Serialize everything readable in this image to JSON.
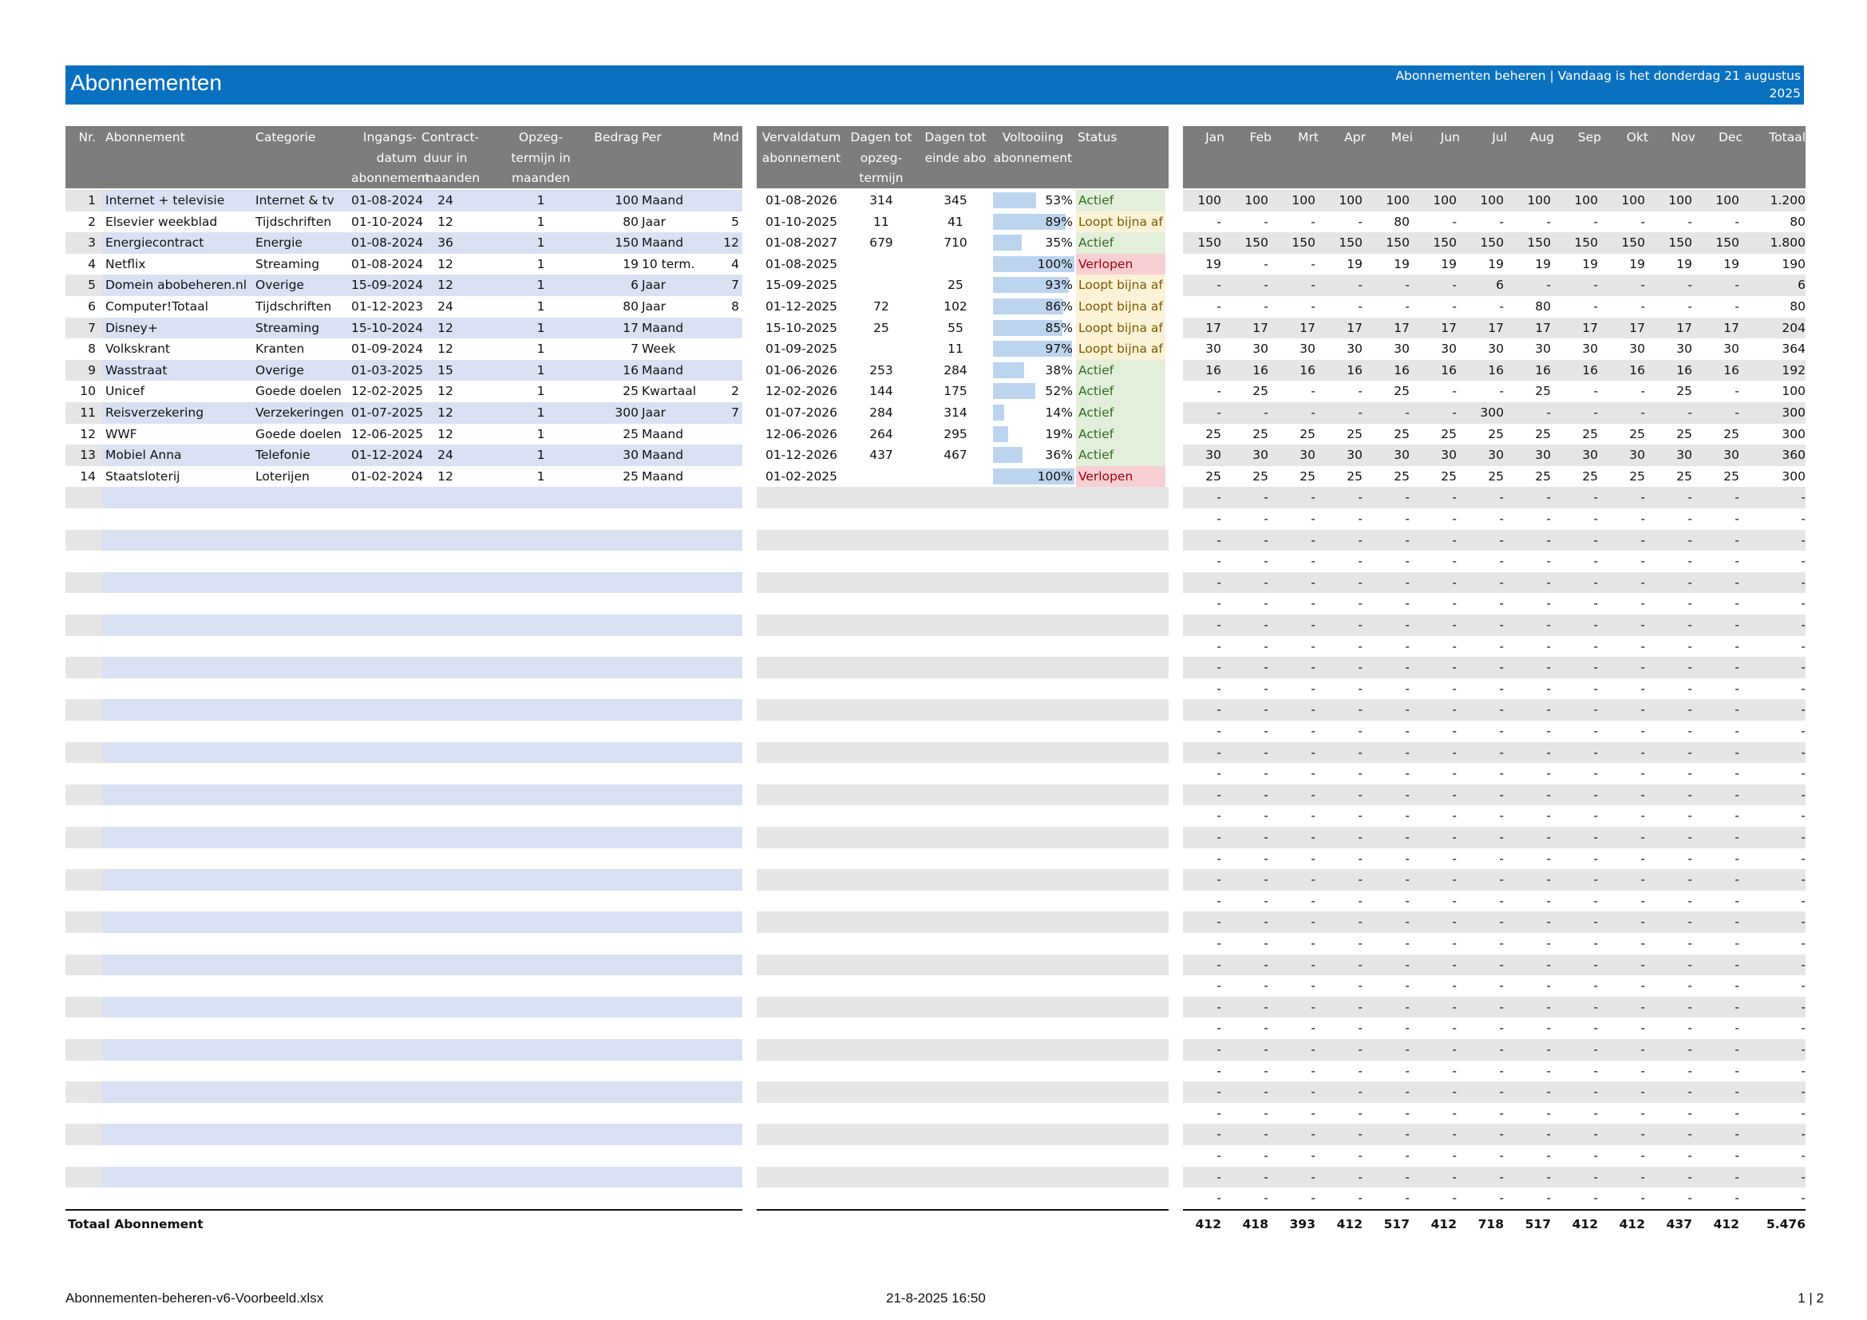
{
  "header": {
    "title": "Abonnementen",
    "info_line1": "Abonnementen beheren | Vandaag is het donderdag 21 augustus",
    "info_line2": "2025"
  },
  "left_columns": [
    "Nr.",
    "Abonnement",
    "Categorie",
    "Ingangs-\ndatum\nabonnement",
    "Contract-\nduur in\nmaanden",
    "Opzeg-\ntermijn in\nmaanden",
    "Bedrag",
    "Per",
    "Mnd"
  ],
  "middle_columns": [
    "Vervaldatum\nabonnement",
    "Dagen tot\nopzeg-\ntermijn",
    "Dagen tot\neinde abo",
    "Voltooiing\nabonnement",
    "Status"
  ],
  "month_columns": [
    "Jan",
    "Feb",
    "Mrt",
    "Apr",
    "Mei",
    "Jun",
    "Jul",
    "Aug",
    "Sep",
    "Okt",
    "Nov",
    "Dec",
    "Totaal"
  ],
  "subscriptions": [
    {
      "nr": "1",
      "name": "Internet + televisie",
      "cat": "Internet & tv",
      "start": "01-08-2024",
      "dur": "24",
      "opz": "1",
      "amt": "100",
      "per": "Maand",
      "mnd": "",
      "exp": "01-08-2026",
      "dopz": "314",
      "dend": "345",
      "pct": "53%",
      "status": "Actief",
      "months": [
        "100",
        "100",
        "100",
        "100",
        "100",
        "100",
        "100",
        "100",
        "100",
        "100",
        "100",
        "100"
      ],
      "total": "1.200"
    },
    {
      "nr": "2",
      "name": "Elsevier weekblad",
      "cat": "Tijdschriften",
      "start": "01-10-2024",
      "dur": "12",
      "opz": "1",
      "amt": "80",
      "per": "Jaar",
      "mnd": "5",
      "exp": "01-10-2025",
      "dopz": "11",
      "dend": "41",
      "pct": "89%",
      "status": "Loopt bijna af",
      "months": [
        "-",
        "-",
        "-",
        "-",
        "80",
        "-",
        "-",
        "-",
        "-",
        "-",
        "-",
        "-"
      ],
      "total": "80"
    },
    {
      "nr": "3",
      "name": "Energiecontract",
      "cat": "Energie",
      "start": "01-08-2024",
      "dur": "36",
      "opz": "1",
      "amt": "150",
      "per": "Maand",
      "mnd": "12",
      "exp": "01-08-2027",
      "dopz": "679",
      "dend": "710",
      "pct": "35%",
      "status": "Actief",
      "months": [
        "150",
        "150",
        "150",
        "150",
        "150",
        "150",
        "150",
        "150",
        "150",
        "150",
        "150",
        "150"
      ],
      "total": "1.800"
    },
    {
      "nr": "4",
      "name": "Netflix",
      "cat": "Streaming",
      "start": "01-08-2024",
      "dur": "12",
      "opz": "1",
      "amt": "19",
      "per": "10 term.",
      "mnd": "4",
      "exp": "01-08-2025",
      "dopz": "",
      "dend": "",
      "pct": "100%",
      "status": "Verlopen",
      "months": [
        "19",
        "-",
        "-",
        "19",
        "19",
        "19",
        "19",
        "19",
        "19",
        "19",
        "19",
        "19"
      ],
      "total": "190"
    },
    {
      "nr": "5",
      "name": "Domein abobeheren.nl",
      "cat": "Overige",
      "start": "15-09-2024",
      "dur": "12",
      "opz": "1",
      "amt": "6",
      "per": "Jaar",
      "mnd": "7",
      "exp": "15-09-2025",
      "dopz": "",
      "dend": "25",
      "pct": "93%",
      "status": "Loopt bijna af",
      "months": [
        "-",
        "-",
        "-",
        "-",
        "-",
        "-",
        "6",
        "-",
        "-",
        "-",
        "-",
        "-"
      ],
      "total": "6"
    },
    {
      "nr": "6",
      "name": "Computer!Totaal",
      "cat": "Tijdschriften",
      "start": "01-12-2023",
      "dur": "24",
      "opz": "1",
      "amt": "80",
      "per": "Jaar",
      "mnd": "8",
      "exp": "01-12-2025",
      "dopz": "72",
      "dend": "102",
      "pct": "86%",
      "status": "Loopt bijna af",
      "months": [
        "-",
        "-",
        "-",
        "-",
        "-",
        "-",
        "-",
        "80",
        "-",
        "-",
        "-",
        "-"
      ],
      "total": "80"
    },
    {
      "nr": "7",
      "name": "Disney+",
      "cat": "Streaming",
      "start": "15-10-2024",
      "dur": "12",
      "opz": "1",
      "amt": "17",
      "per": "Maand",
      "mnd": "",
      "exp": "15-10-2025",
      "dopz": "25",
      "dend": "55",
      "pct": "85%",
      "status": "Loopt bijna af",
      "months": [
        "17",
        "17",
        "17",
        "17",
        "17",
        "17",
        "17",
        "17",
        "17",
        "17",
        "17",
        "17"
      ],
      "total": "204"
    },
    {
      "nr": "8",
      "name": "Volkskrant",
      "cat": "Kranten",
      "start": "01-09-2024",
      "dur": "12",
      "opz": "1",
      "amt": "7",
      "per": "Week",
      "mnd": "",
      "exp": "01-09-2025",
      "dopz": "",
      "dend": "11",
      "pct": "97%",
      "status": "Loopt bijna af",
      "months": [
        "30",
        "30",
        "30",
        "30",
        "30",
        "30",
        "30",
        "30",
        "30",
        "30",
        "30",
        "30"
      ],
      "total": "364"
    },
    {
      "nr": "9",
      "name": "Wasstraat",
      "cat": "Overige",
      "start": "01-03-2025",
      "dur": "15",
      "opz": "1",
      "amt": "16",
      "per": "Maand",
      "mnd": "",
      "exp": "01-06-2026",
      "dopz": "253",
      "dend": "284",
      "pct": "38%",
      "status": "Actief",
      "months": [
        "16",
        "16",
        "16",
        "16",
        "16",
        "16",
        "16",
        "16",
        "16",
        "16",
        "16",
        "16"
      ],
      "total": "192"
    },
    {
      "nr": "10",
      "name": "Unicef",
      "cat": "Goede doelen",
      "start": "12-02-2025",
      "dur": "12",
      "opz": "1",
      "amt": "25",
      "per": "Kwartaal",
      "mnd": "2",
      "exp": "12-02-2026",
      "dopz": "144",
      "dend": "175",
      "pct": "52%",
      "status": "Actief",
      "months": [
        "-",
        "25",
        "-",
        "-",
        "25",
        "-",
        "-",
        "25",
        "-",
        "-",
        "25",
        "-"
      ],
      "total": "100"
    },
    {
      "nr": "11",
      "name": "Reisverzekering",
      "cat": "Verzekeringen",
      "start": "01-07-2025",
      "dur": "12",
      "opz": "1",
      "amt": "300",
      "per": "Jaar",
      "mnd": "7",
      "exp": "01-07-2026",
      "dopz": "284",
      "dend": "314",
      "pct": "14%",
      "status": "Actief",
      "months": [
        "-",
        "-",
        "-",
        "-",
        "-",
        "-",
        "300",
        "-",
        "-",
        "-",
        "-",
        "-"
      ],
      "total": "300"
    },
    {
      "nr": "12",
      "name": "WWF",
      "cat": "Goede doelen",
      "start": "12-06-2025",
      "dur": "12",
      "opz": "1",
      "amt": "25",
      "per": "Maand",
      "mnd": "",
      "exp": "12-06-2026",
      "dopz": "264",
      "dend": "295",
      "pct": "19%",
      "status": "Actief",
      "months": [
        "25",
        "25",
        "25",
        "25",
        "25",
        "25",
        "25",
        "25",
        "25",
        "25",
        "25",
        "25"
      ],
      "total": "300"
    },
    {
      "nr": "13",
      "name": "Mobiel Anna",
      "cat": "Telefonie",
      "start": "01-12-2024",
      "dur": "24",
      "opz": "1",
      "amt": "30",
      "per": "Maand",
      "mnd": "",
      "exp": "01-12-2026",
      "dopz": "437",
      "dend": "467",
      "pct": "36%",
      "status": "Actief",
      "months": [
        "30",
        "30",
        "30",
        "30",
        "30",
        "30",
        "30",
        "30",
        "30",
        "30",
        "30",
        "30"
      ],
      "total": "360"
    },
    {
      "nr": "14",
      "name": "Staatsloterij",
      "cat": "Loterijen",
      "start": "01-02-2024",
      "dur": "12",
      "opz": "1",
      "amt": "25",
      "per": "Maand",
      "mnd": "",
      "exp": "01-02-2025",
      "dopz": "",
      "dend": "",
      "pct": "100%",
      "status": "Verlopen",
      "months": [
        "25",
        "25",
        "25",
        "25",
        "25",
        "25",
        "25",
        "25",
        "25",
        "25",
        "25",
        "25"
      ],
      "total": "300"
    }
  ],
  "empty_placeholder": "-",
  "totals": {
    "label": "Totaal Abonnement",
    "values": [
      "412",
      "418",
      "393",
      "412",
      "517",
      "412",
      "718",
      "517",
      "412",
      "412",
      "437",
      "412",
      "5.476"
    ]
  },
  "footer": {
    "filename": "Abonnementen-beheren-v6-Voorbeeld.xlsx",
    "datetime": "21-8-2025 16:50",
    "page": "1 | 2"
  },
  "colors": {
    "banner": "#0a70c0",
    "header_gray": "#7d7d7d",
    "band_blue": "#d9e1f3",
    "band_gray": "#e6e6e6",
    "status_active_bg": "#e3efda",
    "status_active_fg": "#2f6b1f",
    "status_ending_bg": "#fcf2d6",
    "status_ending_fg": "#7a5a00",
    "status_expired_bg": "#f8cfd3",
    "status_expired_fg": "#9c0006"
  }
}
